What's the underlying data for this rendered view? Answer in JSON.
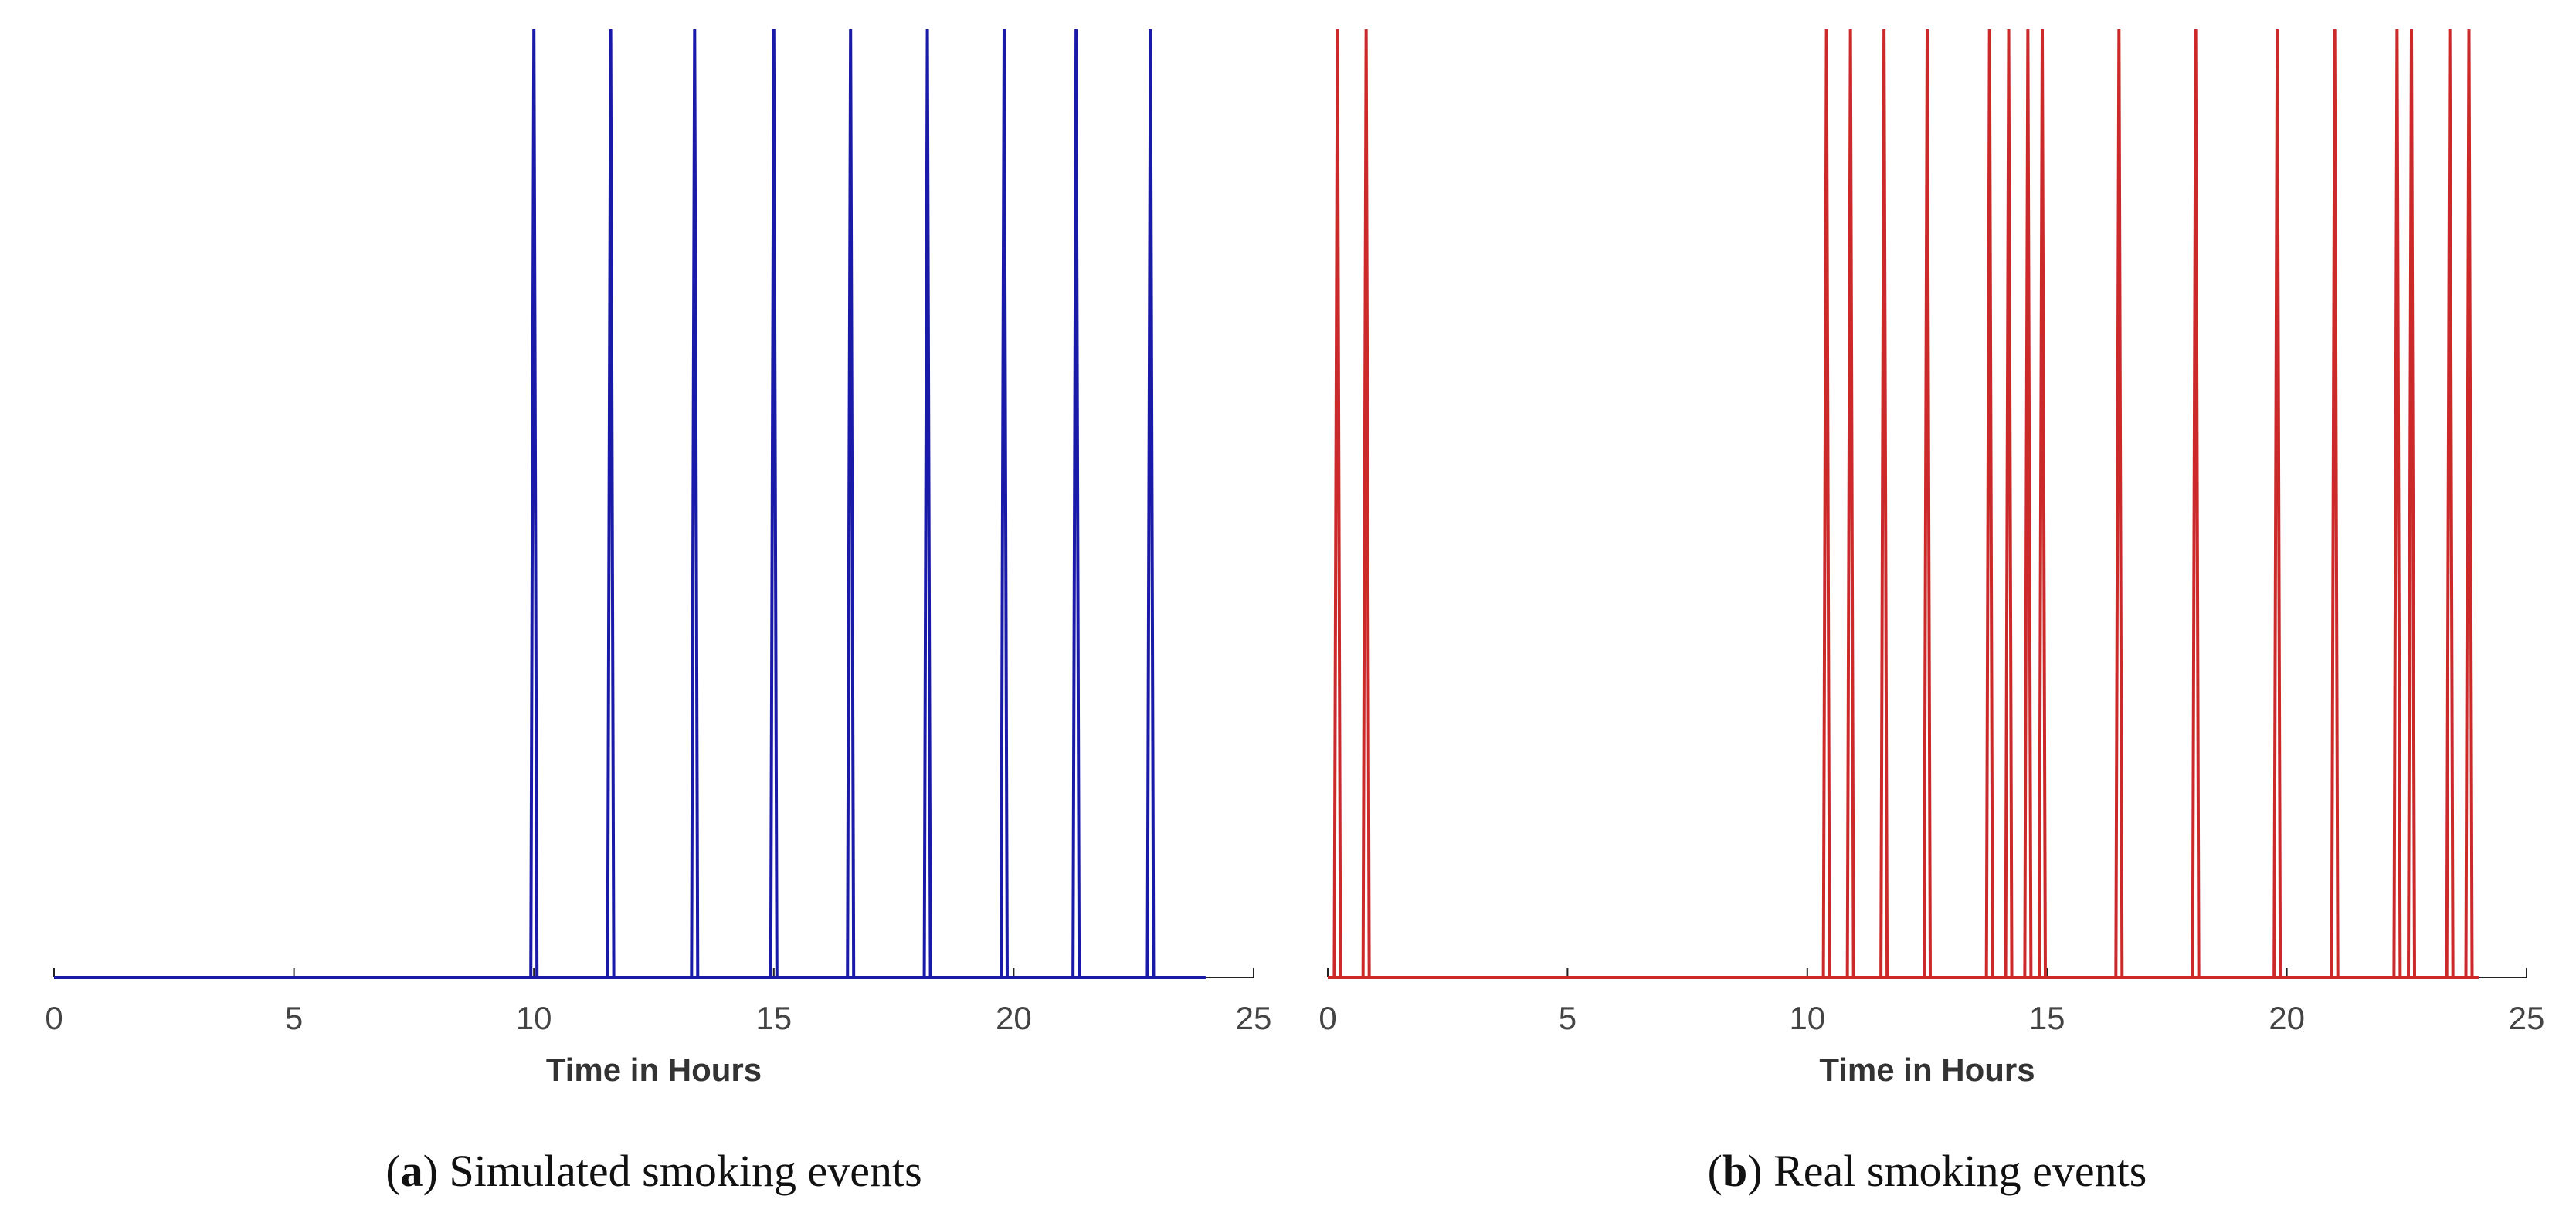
{
  "chart_data": [
    {
      "type": "spike",
      "xlabel": "Time in Hours",
      "caption": "(a) Simulated smoking events",
      "color": "#1a1aa8",
      "time_span": [
        0,
        24
      ],
      "x": [
        10.0,
        11.6,
        13.35,
        15.0,
        16.6,
        18.2,
        19.8,
        21.3,
        22.85
      ],
      "xlim": [
        0,
        25
      ],
      "xticks": [
        0,
        5,
        10,
        15,
        20,
        25
      ]
    },
    {
      "type": "spike",
      "xlabel": "Time in Hours",
      "caption": "(b) Real smoking events",
      "color": "#cc2a2a",
      "time_span": [
        0,
        24
      ],
      "x": [
        0.2,
        0.8,
        10.4,
        10.9,
        11.6,
        12.5,
        13.8,
        14.2,
        14.6,
        14.9,
        16.5,
        18.1,
        19.8,
        21.0,
        22.3,
        22.6,
        23.4,
        23.8
      ],
      "xlim": [
        0,
        25
      ],
      "xticks": [
        0,
        5,
        10,
        15,
        20,
        25
      ]
    }
  ]
}
